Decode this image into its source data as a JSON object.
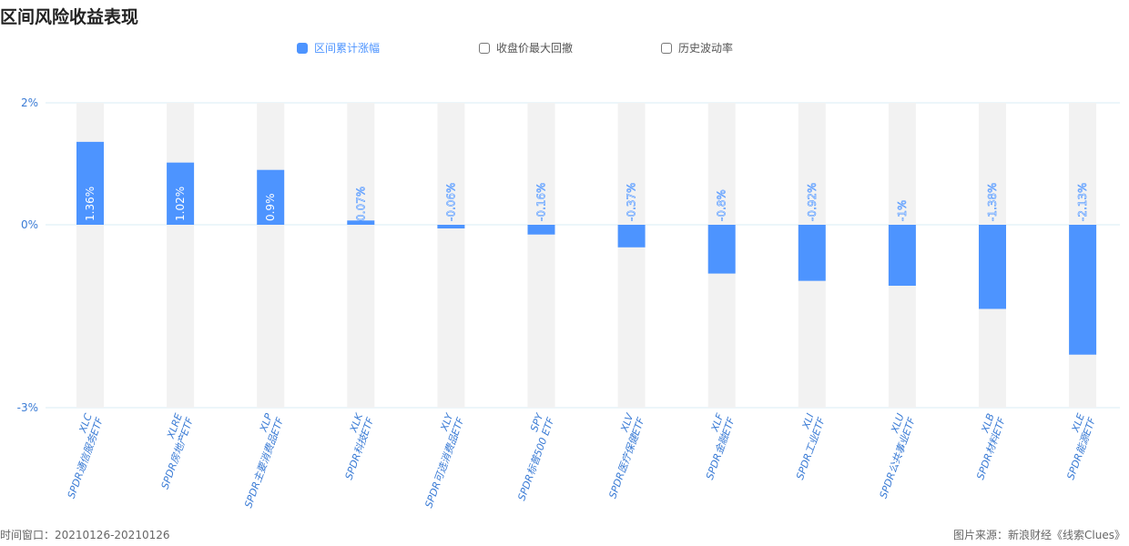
{
  "title": "区间风险收益表现",
  "legend": [
    {
      "label": "区间累计涨幅",
      "active": true
    },
    {
      "label": "收盘价最大回撤",
      "active": false
    },
    {
      "label": "历史波动率",
      "active": false
    }
  ],
  "footer": {
    "left": "时间窗口：20210126-20210126",
    "right": "图片来源：新浪财经《线索Clues》"
  },
  "colors": {
    "bar": "#4D94FF",
    "band": "#F2F2F2",
    "grid": "#D9ECF5",
    "axis_text": "#3A7BD5"
  },
  "chart_data": {
    "type": "bar",
    "ylim": [
      -3,
      2
    ],
    "yticks": [
      {
        "value": 2,
        "label": "2%"
      },
      {
        "value": 0,
        "label": "0%"
      },
      {
        "value": -3,
        "label": "-3%"
      }
    ],
    "categories": [
      {
        "code": "XLC",
        "name": "SPDR通信服务ETF"
      },
      {
        "code": "XLRE",
        "name": "SPDR房地产ETF"
      },
      {
        "code": "XLP",
        "name": "SPDR主要消费品ETF"
      },
      {
        "code": "XLK",
        "name": "SPDR科技ETF"
      },
      {
        "code": "XLY",
        "name": "SPDR可选消费品ETF"
      },
      {
        "code": "SPY",
        "name": "SPDR标普500 ETF"
      },
      {
        "code": "XLV",
        "name": "SPDR医疗保健ETF"
      },
      {
        "code": "XLF",
        "name": "SPDR金融ETF"
      },
      {
        "code": "XLI",
        "name": "SPDR工业ETF"
      },
      {
        "code": "XLU",
        "name": "SPDR公共事业ETF"
      },
      {
        "code": "XLB",
        "name": "SPDR材料ETF"
      },
      {
        "code": "XLE",
        "name": "SPDR能源ETF"
      }
    ],
    "series": [
      {
        "values": [
          1.36,
          1.02,
          0.9,
          0.07,
          -0.06,
          -0.16,
          -0.37,
          -0.8,
          -0.92,
          -1,
          -1.38,
          -2.13
        ],
        "labels": [
          "1.36%",
          "1.02%",
          "0.9%",
          "0.07%",
          "-0.06%",
          "-0.16%",
          "-0.37%",
          "-0.8%",
          "-0.92%",
          "-1%",
          "-1.38%",
          "-2.13%"
        ]
      }
    ]
  }
}
